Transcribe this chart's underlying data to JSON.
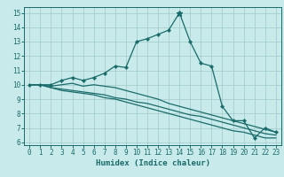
{
  "xlabel": "Humidex (Indice chaleur)",
  "bg_color": "#c8eaea",
  "grid_color": "#a0c8c8",
  "line_color": "#1a6b6b",
  "xlim": [
    -0.5,
    23.5
  ],
  "ylim": [
    5.8,
    15.4
  ],
  "yticks": [
    6,
    7,
    8,
    9,
    10,
    11,
    12,
    13,
    14,
    15
  ],
  "xticks": [
    0,
    1,
    2,
    3,
    4,
    5,
    6,
    7,
    8,
    9,
    10,
    11,
    12,
    13,
    14,
    15,
    16,
    17,
    18,
    19,
    20,
    21,
    22,
    23
  ],
  "line1_x": [
    0,
    1,
    2,
    3,
    4,
    5,
    6,
    7,
    8,
    9,
    10,
    11,
    12,
    13,
    14,
    15,
    16,
    17,
    18,
    19,
    20,
    21,
    22,
    23
  ],
  "line1_y": [
    10.0,
    10.0,
    10.0,
    10.3,
    10.5,
    10.3,
    10.5,
    10.8,
    11.3,
    11.2,
    13.0,
    13.2,
    13.5,
    13.8,
    15.0,
    13.0,
    11.5,
    11.3,
    8.5,
    7.5,
    7.5,
    6.3,
    7.0,
    6.7
  ],
  "line2_x": [
    0,
    1,
    2,
    3,
    4,
    5,
    6,
    7,
    8,
    9,
    10,
    11,
    12,
    13,
    14,
    15,
    16,
    17,
    18,
    19,
    20,
    21,
    22,
    23
  ],
  "line2_y": [
    10.0,
    10.0,
    9.9,
    10.0,
    10.1,
    9.9,
    10.0,
    9.9,
    9.8,
    9.6,
    9.4,
    9.2,
    9.0,
    8.7,
    8.5,
    8.3,
    8.1,
    7.9,
    7.7,
    7.5,
    7.3,
    7.1,
    6.9,
    6.7
  ],
  "line3_x": [
    0,
    1,
    2,
    3,
    4,
    5,
    6,
    7,
    8,
    9,
    10,
    11,
    12,
    13,
    14,
    15,
    16,
    17,
    18,
    19,
    20,
    21,
    22,
    23
  ],
  "line3_y": [
    10.0,
    10.0,
    9.8,
    9.7,
    9.6,
    9.5,
    9.4,
    9.3,
    9.1,
    9.0,
    8.8,
    8.7,
    8.5,
    8.3,
    8.1,
    7.9,
    7.8,
    7.6,
    7.4,
    7.2,
    7.0,
    6.8,
    6.6,
    6.5
  ],
  "line4_x": [
    0,
    1,
    2,
    3,
    4,
    5,
    6,
    7,
    8,
    9,
    10,
    11,
    12,
    13,
    14,
    15,
    16,
    17,
    18,
    19,
    20,
    21,
    22,
    23
  ],
  "line4_y": [
    10.0,
    10.0,
    9.8,
    9.6,
    9.5,
    9.4,
    9.3,
    9.1,
    9.0,
    8.8,
    8.6,
    8.4,
    8.2,
    8.0,
    7.8,
    7.6,
    7.4,
    7.2,
    7.0,
    6.8,
    6.7,
    6.5,
    6.3,
    6.3
  ],
  "star_x": 14,
  "star_y": 15.0,
  "tick_fontsize": 5.5,
  "xlabel_fontsize": 6.5
}
